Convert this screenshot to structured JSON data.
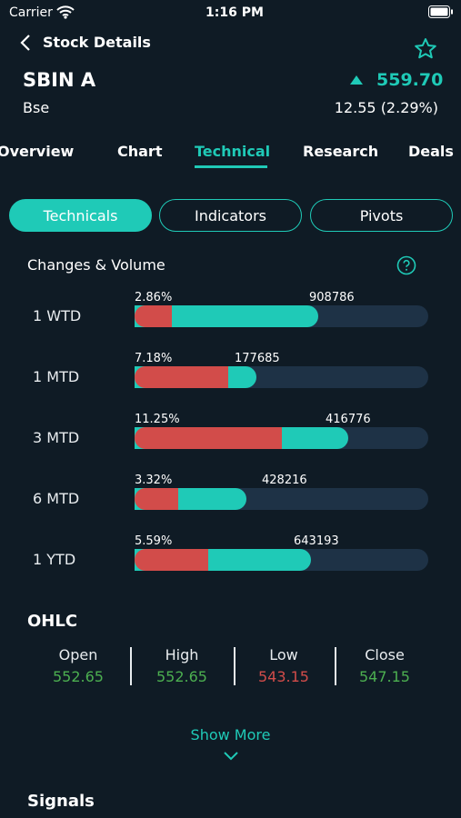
{
  "status_bar": {
    "carrier": "Carrier",
    "time": "1:16 PM"
  },
  "header": {
    "title": "Stock Details"
  },
  "stock": {
    "symbol": "SBIN A",
    "price": "559.70",
    "exchange": "Bse",
    "change": "12.55 (2.29%)"
  },
  "tabs": [
    "Overview",
    "Chart",
    "Technical",
    "Research",
    "Deals"
  ],
  "segments": [
    "Technicals",
    "Indicators",
    "Pivots"
  ],
  "changes_volume": {
    "title": "Changes & Volume",
    "rows": [
      {
        "period": "1 WTD",
        "change": "2.86%",
        "volume": "908786"
      },
      {
        "period": "1 MTD",
        "change": "7.18%",
        "volume": "177685"
      },
      {
        "period": "3 MTD",
        "change": "11.25%",
        "volume": "416776"
      },
      {
        "period": "6 MTD",
        "change": "3.32%",
        "volume": "428216"
      },
      {
        "period": "1 YTD",
        "change": "5.59%",
        "volume": "643193"
      }
    ]
  },
  "ohlc": {
    "title": "OHLC",
    "items": [
      {
        "label": "Open",
        "value": "552.65"
      },
      {
        "label": "High",
        "value": "552.65"
      },
      {
        "label": "Low",
        "value": "543.15"
      },
      {
        "label": "Close",
        "value": "547.15"
      }
    ]
  },
  "show_more": "Show More",
  "signals": {
    "title": "Signals"
  }
}
